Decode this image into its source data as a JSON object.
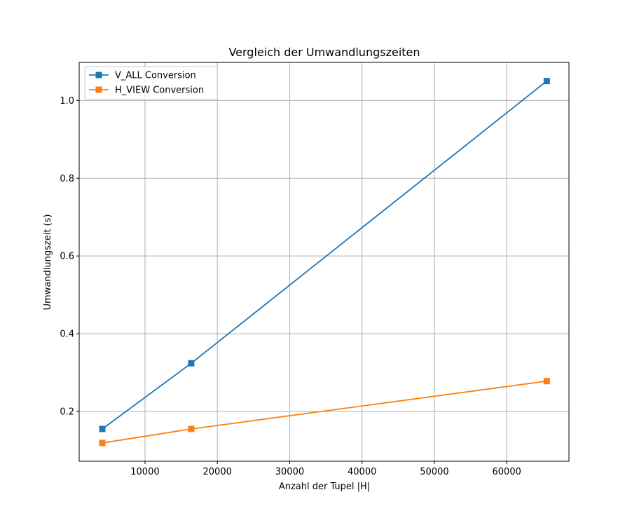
{
  "chart_data": {
    "type": "line",
    "title": "Vergleich der Umwandlungszeiten",
    "xlabel": "Anzahl der Tupel |H|",
    "ylabel": "Umwandlungszeit (s)",
    "xlim": [
      900,
      68600
    ],
    "ylim": [
      0.072,
      1.098
    ],
    "xticks": [
      10000,
      20000,
      30000,
      40000,
      50000,
      60000
    ],
    "xtick_labels": [
      "10000",
      "20000",
      "30000",
      "40000",
      "50000",
      "60000"
    ],
    "yticks": [
      0.2,
      0.4,
      0.6,
      0.8,
      1.0
    ],
    "ytick_labels": [
      "0.2",
      "0.4",
      "0.6",
      "0.8",
      "1.0"
    ],
    "grid": true,
    "legend_position": "upper-left",
    "series": [
      {
        "name": "V_ALL Conversion",
        "color": "#1f77b4",
        "marker": "square",
        "x": [
          4096,
          16384,
          65536
        ],
        "y": [
          0.155,
          0.324,
          1.05
        ]
      },
      {
        "name": "H_VIEW Conversion",
        "color": "#ff7f0e",
        "marker": "square",
        "x": [
          4096,
          16384,
          65536
        ],
        "y": [
          0.119,
          0.155,
          0.278
        ]
      }
    ]
  }
}
